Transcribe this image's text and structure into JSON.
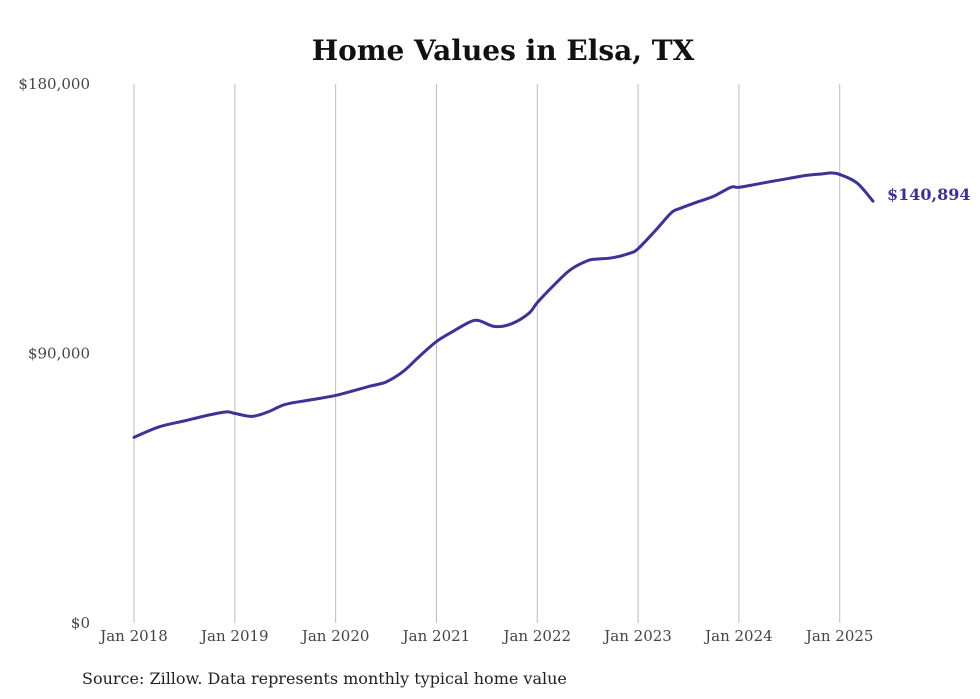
{
  "chart_data": {
    "type": "line",
    "title": "Home Values in Elsa, TX",
    "ylim": [
      0,
      180000
    ],
    "y_ticks": [
      {
        "value": 0,
        "label": "$0"
      },
      {
        "value": 90000,
        "label": "$90,000"
      },
      {
        "value": 180000,
        "label": "$180,000"
      }
    ],
    "x_ticks": [
      {
        "value": 2018,
        "label": "Jan 2018"
      },
      {
        "value": 2019,
        "label": "Jan 2019"
      },
      {
        "value": 2020,
        "label": "Jan 2020"
      },
      {
        "value": 2021,
        "label": "Jan 2021"
      },
      {
        "value": 2022,
        "label": "Jan 2022"
      },
      {
        "value": 2023,
        "label": "Jan 2023"
      },
      {
        "value": 2024,
        "label": "Jan 2024"
      },
      {
        "value": 2025,
        "label": "Jan 2025"
      }
    ],
    "xlim": [
      2018,
      2025.35
    ],
    "grid": "vertical",
    "series": [
      {
        "color": "#3b3395",
        "x": [
          2018.0,
          2018.25,
          2018.5,
          2018.75,
          2018.92,
          2019.0,
          2019.17,
          2019.33,
          2019.5,
          2019.75,
          2020.0,
          2020.17,
          2020.33,
          2020.5,
          2020.67,
          2020.83,
          2021.0,
          2021.17,
          2021.33,
          2021.42,
          2021.58,
          2021.75,
          2021.92,
          2022.0,
          2022.17,
          2022.33,
          2022.5,
          2022.58,
          2022.75,
          2022.92,
          2023.0,
          2023.17,
          2023.33,
          2023.42,
          2023.58,
          2023.75,
          2023.92,
          2024.0,
          2024.17,
          2024.33,
          2024.5,
          2024.67,
          2024.83,
          2024.92,
          2025.0,
          2025.17,
          2025.33
        ],
        "y": [
          62000,
          65500,
          67500,
          69500,
          70500,
          70000,
          69000,
          70500,
          73000,
          74500,
          76000,
          77500,
          79000,
          80500,
          84000,
          89000,
          94000,
          97500,
          100500,
          101000,
          99000,
          100000,
          103500,
          107000,
          113000,
          118000,
          121000,
          121500,
          122000,
          123500,
          125000,
          131000,
          137000,
          138500,
          140500,
          142500,
          145500,
          145500,
          146500,
          147500,
          148500,
          149500,
          150000,
          150300,
          149800,
          147000,
          140894
        ]
      }
    ],
    "end_label": "$140,894",
    "source_note": "Source: Zillow. Data represents monthly typical home value"
  }
}
